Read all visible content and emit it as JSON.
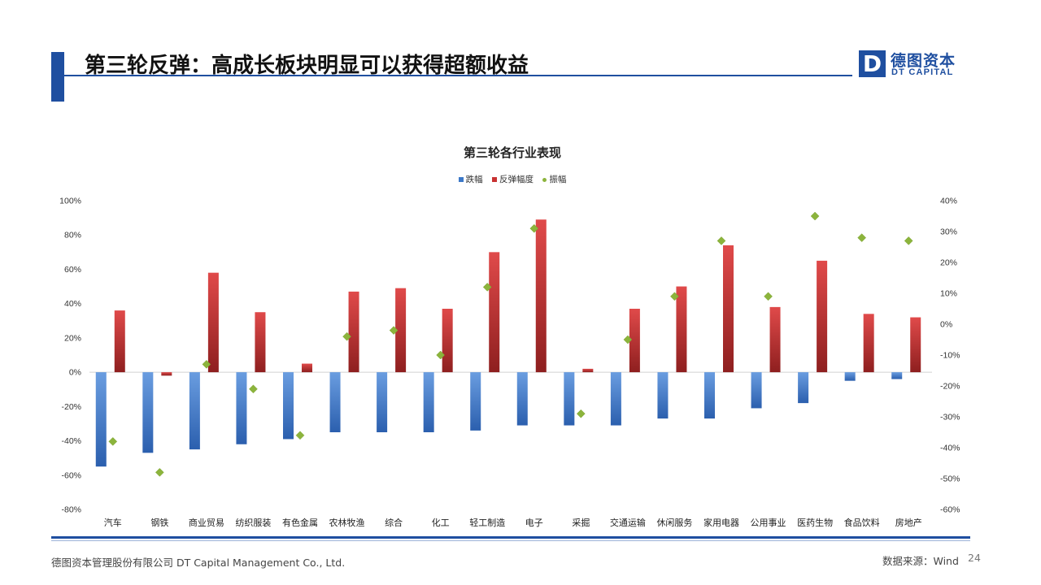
{
  "header": {
    "title": "第三轮反弹：高成长板块明显可以获得超额收益",
    "logo_mark": "D",
    "logo_cn": "德图资本",
    "logo_en": "DT CAPITAL"
  },
  "colors": {
    "accent": "#1f4fa0",
    "series_drop": "#3c78c8",
    "series_rebound": "#c83232",
    "series_amplitude": "#8cb43c"
  },
  "chart_data": {
    "type": "bar",
    "title": "第三轮各行业表现",
    "legend_position": "top",
    "categories": [
      "汽车",
      "钢铁",
      "商业贸易",
      "纺织服装",
      "有色金属",
      "农林牧渔",
      "综合",
      "化工",
      "轻工制造",
      "电子",
      "采掘",
      "交通运输",
      "休闲服务",
      "家用电器",
      "公用事业",
      "医药生物",
      "食品饮料",
      "房地产"
    ],
    "series": [
      {
        "name": "跌幅",
        "axis": "left",
        "kind": "bar",
        "values": [
          -55,
          -47,
          -45,
          -42,
          -39,
          -35,
          -35,
          -35,
          -34,
          -31,
          -31,
          -31,
          -27,
          -27,
          -21,
          -18,
          -5,
          -4
        ]
      },
      {
        "name": "反弹幅度",
        "axis": "left",
        "kind": "bar",
        "values": [
          36,
          -2,
          58,
          35,
          5,
          47,
          49,
          37,
          70,
          89,
          2,
          37,
          50,
          74,
          38,
          65,
          34,
          32
        ]
      },
      {
        "name": "振幅",
        "axis": "right",
        "kind": "scatter",
        "values": [
          -38,
          -48,
          -13,
          -21,
          -36,
          -4,
          -2,
          -10,
          12,
          31,
          -29,
          -5,
          9,
          27,
          9,
          35,
          28,
          27
        ]
      }
    ],
    "y_left": {
      "min": -80,
      "max": 100,
      "step": 20,
      "unit": "%"
    },
    "y_right": {
      "min": -60,
      "max": 40,
      "step": 10,
      "unit": "%"
    },
    "grid": false
  },
  "footer": {
    "company": "德图资本管理股份有限公司  DT Capital Management  Co., Ltd.",
    "source": "数据来源：Wind",
    "page_number": "24"
  }
}
